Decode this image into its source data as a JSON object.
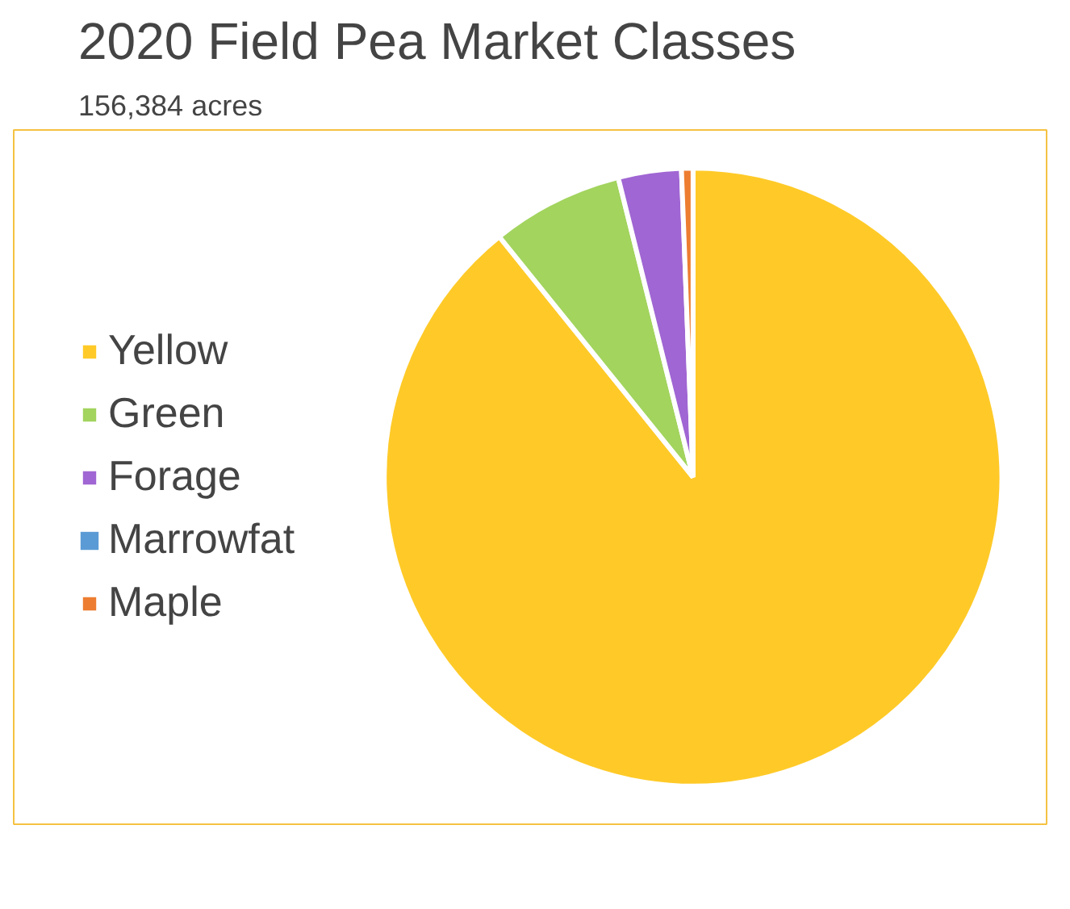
{
  "chart_data": {
    "type": "pie",
    "title": "2020 Field Pea Market Classes",
    "subtitle": "156,384 acres",
    "categories": [
      "Yellow",
      "Green",
      "Forage",
      "Marrowfat",
      "Maple"
    ],
    "values": [
      89.2,
      6.9,
      3.3,
      null,
      0.6
    ],
    "colors": [
      "#ffca28",
      "#a2d45e",
      "#a066d3",
      "#5b9bd5",
      "#ed7d31"
    ],
    "legend": "left"
  }
}
